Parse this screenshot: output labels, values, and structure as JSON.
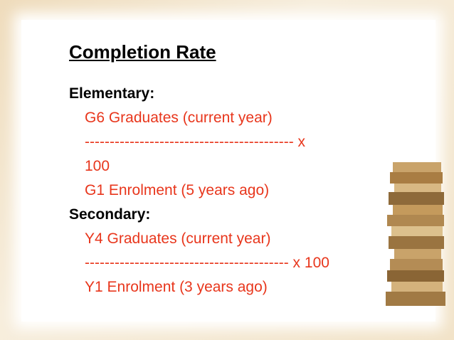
{
  "slide": {
    "title": "Completion Rate",
    "sections": [
      {
        "label": "Elementary:",
        "lines": [
          "G6 Graduates (current year)",
          "------------------------------------------ x",
          "100",
          "G1 Enrolment (5 years ago)"
        ]
      },
      {
        "label": "Secondary:",
        "lines": [
          "Y4 Graduates (current year)",
          "----------------------------------------- x 100",
          "Y1 Enrolment (3 years ago)"
        ]
      }
    ]
  }
}
